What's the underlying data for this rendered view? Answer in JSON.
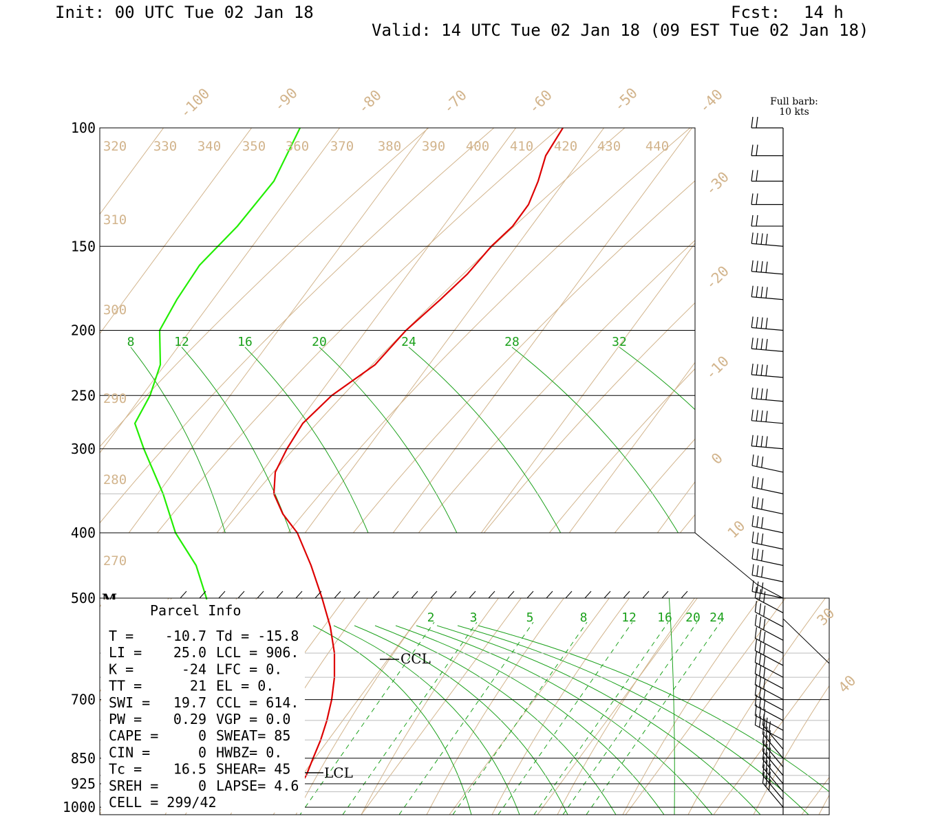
{
  "header": {
    "init": "Init: 00 UTC Tue 02 Jan 18",
    "fcst_label": "Fcst:",
    "fcst_value": "14 h",
    "valid": "Valid: 14 UTC Tue 02 Jan 18 (09 EST Tue 02 Jan 18)"
  },
  "barb_note": {
    "line1": "Full barb:",
    "line2": "10 kts"
  },
  "parcel_info": {
    "title": "Parcel Info",
    "rows": [
      [
        "T  =",
        "-10.7",
        "Td = -15.8"
      ],
      [
        "LI =",
        "25.0",
        "LCL =  906."
      ],
      [
        "K  =",
        "-24",
        "LFC =    0."
      ],
      [
        "TT =",
        "21",
        "EL  =    0."
      ],
      [
        "SWI =",
        "19.7",
        "CCL =  614."
      ],
      [
        "PW =",
        "0.29",
        "VGP =   0.0"
      ],
      [
        "CAPE =",
        "0",
        "SWEAT=   85"
      ],
      [
        "CIN =",
        "0",
        "HWBZ=    0."
      ],
      [
        "Tc =",
        "16.5",
        "SHEAR=  45"
      ],
      [
        "SREH =",
        "0",
        "LAPSE=  4.6"
      ],
      [
        "CELL = 299/42",
        "",
        ""
      ]
    ]
  },
  "level_labels": {
    "ccl": "CCL",
    "lcl": "LCL",
    "marker": "M"
  },
  "colors": {
    "temperature": "#dd0000",
    "dewpoint": "#22ee00",
    "isotherm": "#d2b48c",
    "mixing_ratio": "#1aa01a",
    "frame": "#000000"
  },
  "chart_data": {
    "type": "line",
    "title": "",
    "pressure_levels_hpa": [
      "100",
      "150",
      "200",
      "250",
      "300",
      "400",
      "500",
      "700",
      "850",
      "925",
      "1000"
    ],
    "isotherm_labels_c": [
      "-100",
      "-90",
      "-80",
      "-70",
      "-60",
      "-50",
      "-40",
      "-30",
      "-20",
      "-10",
      "0",
      "10",
      "30",
      "40"
    ],
    "theta_labels_k": [
      "320",
      "330",
      "340",
      "350",
      "360",
      "370",
      "380",
      "390",
      "400",
      "410",
      "420",
      "430",
      "440",
      "310",
      "300",
      "290",
      "280",
      "270"
    ],
    "mixing_ratio_labels_upper": [
      "8",
      "12",
      "16",
      "20",
      "24",
      "28",
      "32"
    ],
    "mixing_ratio_labels_lower": [
      "2",
      "3",
      "5",
      "8",
      "12",
      "16",
      "20",
      "24"
    ],
    "series": [
      {
        "name": "Temperature",
        "points": [
          [
            100,
            420
          ],
          [
            110,
            416
          ],
          [
            120,
            414
          ],
          [
            130,
            411
          ],
          [
            140,
            408
          ],
          [
            150,
            404
          ],
          [
            165,
            399
          ],
          [
            180,
            394
          ],
          [
            200,
            389
          ],
          [
            225,
            383
          ],
          [
            250,
            375
          ],
          [
            275,
            369
          ],
          [
            300,
            366
          ],
          [
            325,
            365
          ],
          [
            350,
            366
          ],
          [
            375,
            369
          ],
          [
            400,
            373
          ],
          [
            450,
            378
          ],
          [
            500,
            383
          ],
          [
            550,
            387
          ],
          [
            600,
            291
          ],
          [
            650,
            294
          ],
          [
            700,
            295
          ],
          [
            750,
            294
          ],
          [
            800,
            293
          ],
          [
            850,
            292
          ],
          [
            900,
            291
          ],
          [
            950,
            290
          ],
          [
            1000,
            290
          ]
        ]
      },
      {
        "name": "Dewpoint",
        "points": [
          [
            100,
            360
          ],
          [
            120,
            350
          ],
          [
            140,
            338
          ],
          [
            160,
            326
          ],
          [
            180,
            318
          ],
          [
            200,
            316
          ],
          [
            225,
            308
          ],
          [
            250,
            296
          ],
          [
            275,
            289
          ],
          [
            300,
            285
          ],
          [
            350,
            282
          ],
          [
            400,
            280
          ],
          [
            450,
            279
          ],
          [
            500,
            279
          ],
          [
            600,
            268
          ],
          [
            700,
            262
          ],
          [
            800,
            259
          ],
          [
            850,
            259
          ],
          [
            900,
            260
          ],
          [
            950,
            262
          ],
          [
            1000,
            263
          ]
        ]
      }
    ],
    "wind_barb_pressures_hpa": [
      100,
      110,
      120,
      130,
      140,
      150,
      165,
      180,
      200,
      215,
      235,
      255,
      275,
      300,
      325,
      350,
      375,
      400,
      425,
      450,
      475,
      500,
      525,
      550,
      575,
      600,
      625,
      650,
      675,
      700,
      725,
      750,
      775,
      800,
      825,
      850,
      875,
      900,
      925,
      950,
      975,
      1000
    ]
  }
}
